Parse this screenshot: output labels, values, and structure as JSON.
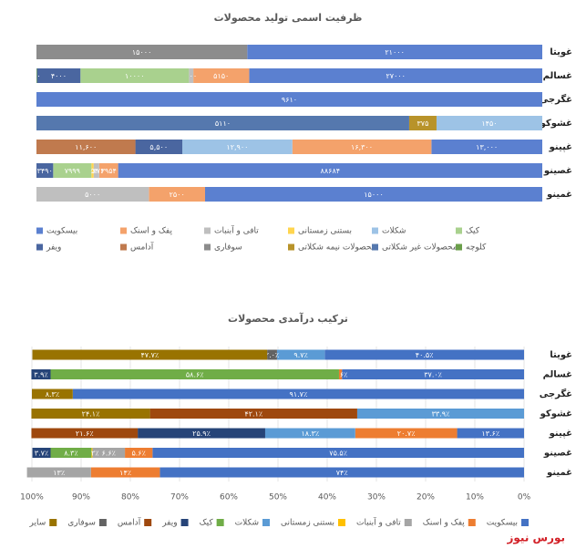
{
  "chart_data": [
    {
      "type": "bar",
      "orientation": "horizontal",
      "stacked": "percent",
      "legend": "bottom",
      "title": "ظرفیت اسمی تولید محصولات",
      "categories": [
        "غویتا",
        "غسالم",
        "غگرجی",
        "غشوکو",
        "غپینو",
        "غصینو",
        "غمینو"
      ],
      "series": [
        {
          "name": "بیسکویت",
          "color": "#5b80d0",
          "values": [
            21000,
            27000,
            9610,
            null,
            13000,
            88684,
            15000
          ],
          "value_labels": [
            "۲۱۰۰۰",
            "۲۷۰۰۰",
            "۹۶۱۰",
            null,
            "۱۳,۰۰۰",
            "۸۸۶۸۴",
            "۱۵۰۰۰"
          ]
        },
        {
          "name": "پفک و اسنک",
          "color": "#f4a26b",
          "values": [
            null,
            5150,
            null,
            null,
            16300,
            3954,
            2500
          ],
          "value_labels": [
            null,
            "۵۱۵۰",
            null,
            null,
            "۱۶,۳۰۰",
            "۳۹۵۴",
            "۲۵۰۰"
          ]
        },
        {
          "name": "تافی و آبنبات",
          "color": "#bfbfbf",
          "values": [
            null,
            400,
            null,
            null,
            null,
            1176,
            5000
          ],
          "value_labels": [
            null,
            "۴۰۰",
            null,
            null,
            null,
            "۱۱۷۶",
            "۵۰۰۰"
          ]
        },
        {
          "name": "بستنی زمستانی",
          "color": "#ffd54f",
          "values": [
            null,
            null,
            null,
            null,
            null,
            454,
            null
          ],
          "value_labels": [
            null,
            null,
            null,
            null,
            null,
            "۴۵۴",
            null
          ]
        },
        {
          "name": "شکلات",
          "color": "#9dc3e6",
          "values": [
            null,
            null,
            null,
            1450,
            12900,
            null,
            null
          ],
          "value_labels": [
            null,
            null,
            null,
            "۱۴۵۰",
            "۱۲,۹۰۰",
            null,
            null
          ]
        },
        {
          "name": "کیک",
          "color": "#a9d18e",
          "values": [
            null,
            10000,
            null,
            null,
            null,
            7999,
            null
          ],
          "value_labels": [
            null,
            "۱۰۰۰۰",
            null,
            null,
            null,
            "۷۹۹۹",
            null
          ]
        },
        {
          "name": "ویفر",
          "color": "#4a66a0",
          "values": [
            null,
            4000,
            null,
            null,
            5500,
            3490,
            null
          ],
          "value_labels": [
            null,
            "۴۰۰۰",
            null,
            null,
            "۵,۵۰۰",
            "۳۴۹۰",
            null
          ]
        },
        {
          "name": "آدامس",
          "color": "#c07a4e",
          "values": [
            null,
            null,
            null,
            null,
            11600,
            null,
            null
          ],
          "value_labels": [
            null,
            null,
            null,
            null,
            "۱۱,۶۰۰",
            null,
            null
          ]
        },
        {
          "name": "سوفاری",
          "color": "#8c8c8c",
          "values": [
            15000,
            null,
            null,
            null,
            null,
            null,
            null
          ],
          "value_labels": [
            "۱۵۰۰۰",
            null,
            null,
            null,
            null,
            null,
            null
          ]
        },
        {
          "name": "محصولات نیمه شکلاتی",
          "color": "#b8932a",
          "values": [
            null,
            null,
            null,
            375,
            null,
            null,
            null
          ],
          "value_labels": [
            null,
            null,
            null,
            "۳۷۵",
            null,
            null,
            null
          ]
        },
        {
          "name": "محصولات غیر شکلاتی",
          "color": "#5578ae",
          "values": [
            null,
            null,
            null,
            5110,
            null,
            null,
            null
          ],
          "value_labels": [
            null,
            null,
            null,
            "۵۱۱۰",
            null,
            null,
            null
          ]
        },
        {
          "name": "کلوچه",
          "color": "#6a9e4a",
          "values": [
            null,
            50,
            null,
            null,
            null,
            null,
            null
          ],
          "value_labels": [
            null,
            "۵۰",
            null,
            null,
            null,
            null,
            null
          ]
        }
      ]
    },
    {
      "type": "bar",
      "orientation": "horizontal",
      "stacked": true,
      "legend": "bottom",
      "title": "ترکیب درآمدی محصولات",
      "categories": [
        "غویتا",
        "غسالم",
        "غگرجی",
        "غشوکو",
        "غپینو",
        "غصینو",
        "غمینو"
      ],
      "xlim": [
        100,
        0
      ],
      "xticks": [
        {
          "value": 100,
          "label": "100%"
        },
        {
          "value": 90,
          "label": "90%"
        },
        {
          "value": 80,
          "label": "80%"
        },
        {
          "value": 70,
          "label": "70%"
        },
        {
          "value": 60,
          "label": "60%"
        },
        {
          "value": 50,
          "label": "50%"
        },
        {
          "value": 40,
          "label": "40%"
        },
        {
          "value": 30,
          "label": "30%"
        },
        {
          "value": 20,
          "label": "20%"
        },
        {
          "value": 10,
          "label": "10%"
        },
        {
          "value": 0,
          "label": "0%"
        }
      ],
      "series": [
        {
          "name": "بیسکویت",
          "color": "#4472c4",
          "values": [
            40.5,
            37.0,
            91.7,
            null,
            13.6,
            75.5,
            74
          ],
          "value_labels": [
            "۴۰.۵٪",
            "۳۷.۰٪",
            "۹۱.۷٪",
            null,
            "۱۳.۶٪",
            "۷۵.۵٪",
            "۷۴٪"
          ]
        },
        {
          "name": "پفک و اسنک",
          "color": "#ed7d31",
          "values": [
            null,
            0.6,
            null,
            null,
            20.7,
            5.6,
            14
          ],
          "value_labels": [
            null,
            "۰.۶٪",
            null,
            null,
            "۲۰.۷٪",
            "۵.۶٪",
            "۱۴٪"
          ]
        },
        {
          "name": "تافی و آبنبات",
          "color": "#a5a5a5",
          "values": [
            null,
            null,
            null,
            null,
            null,
            6.6,
            13
          ],
          "value_labels": [
            null,
            null,
            null,
            null,
            null,
            "۶.۶٪",
            "۱۳٪"
          ]
        },
        {
          "name": "بستنی زمستانی",
          "color": "#ffc000",
          "values": [
            null,
            null,
            null,
            null,
            null,
            0.2,
            null
          ],
          "value_labels": [
            null,
            null,
            null,
            null,
            null,
            "۰.۲٪",
            null
          ]
        },
        {
          "name": "شکلات",
          "color": "#5b9bd5",
          "values": [
            9.7,
            null,
            null,
            33.9,
            18.3,
            null,
            null
          ],
          "value_labels": [
            "۹.۷٪",
            null,
            null,
            "۳۳.۹٪",
            "۱۸.۳٪",
            null,
            null
          ]
        },
        {
          "name": "کیک",
          "color": "#70ad47",
          "values": [
            null,
            58.6,
            null,
            null,
            null,
            8.3,
            null
          ],
          "value_labels": [
            null,
            "۵۸.۶٪",
            null,
            null,
            null,
            "۸.۳٪",
            null
          ]
        },
        {
          "name": "ویفر",
          "color": "#264478",
          "values": [
            null,
            3.9,
            null,
            null,
            25.9,
            3.7,
            null
          ],
          "value_labels": [
            null,
            "۳.۹٪",
            null,
            null,
            "۲۵.۹٪",
            "۳.۷٪",
            null
          ]
        },
        {
          "name": "آدامس",
          "color": "#9e480e",
          "values": [
            null,
            null,
            null,
            42.1,
            21.6,
            null,
            null
          ],
          "value_labels": [
            null,
            null,
            null,
            "۴۲.۱٪",
            "۲۱.۶٪",
            null,
            null
          ]
        },
        {
          "name": "سوفاری",
          "color": "#636363",
          "values": [
            2.0,
            null,
            null,
            null,
            null,
            null,
            null
          ],
          "value_labels": [
            "۲.۰٪",
            null,
            null,
            null,
            null,
            null,
            null
          ]
        },
        {
          "name": "سایر",
          "color": "#997300",
          "values": [
            47.7,
            null,
            8.3,
            24.1,
            null,
            null,
            null
          ],
          "value_labels": [
            "۴۷.۷٪",
            null,
            "۸.۳٪",
            "۲۴.۱٪",
            null,
            null,
            null
          ]
        }
      ]
    }
  ],
  "watermark": "بورس نیوز"
}
